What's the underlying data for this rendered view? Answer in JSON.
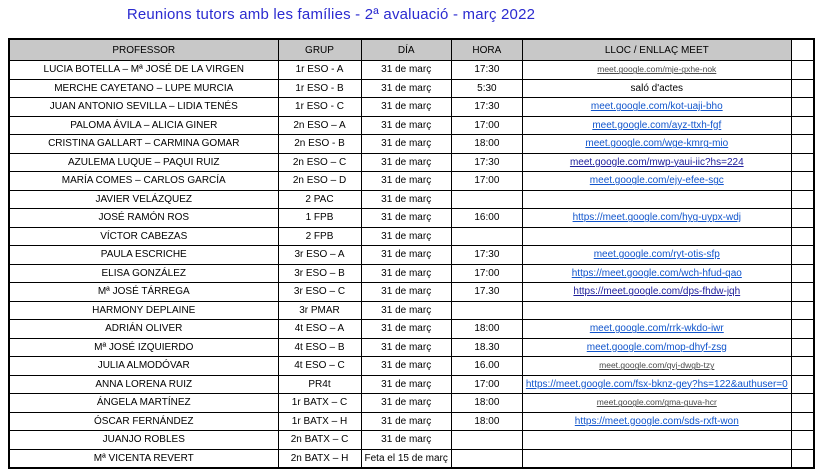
{
  "title": "Reunions tutors amb les famílies - 2ª avaluació - març 2022",
  "table": {
    "columns": [
      "PROFESSOR",
      "GRUP",
      "DÍA",
      "HORA",
      "LLOC / ENLLAÇ MEET",
      ""
    ],
    "rows": [
      {
        "professor": "LUCIA BOTELLA – Mª JOSÉ DE LA VIRGEN",
        "grup": "1r ESO - A",
        "dia": "31 de març",
        "hora": "17:30",
        "lloc": "meet.google.com/mje-gxhe-nok",
        "lloc_style": "small-link"
      },
      {
        "professor": "MERCHE CAYETANO – LUPE MURCIA",
        "grup": "1r ESO - B",
        "dia": "31 de març",
        "hora": "5:30",
        "lloc": "saló d'actes",
        "lloc_style": "text"
      },
      {
        "professor": "JUAN ANTONIO SEVILLA – LIDIA TENÉS",
        "grup": "1r ESO - C",
        "dia": "31 de març",
        "hora": "17:30",
        "lloc": "meet.google.com/kot-uaji-bho",
        "lloc_style": "link"
      },
      {
        "professor": "PALOMA ÁVILA – ALICIA GINER",
        "grup": "2n ESO – A",
        "dia": "31 de març",
        "hora": "17:00",
        "lloc": "meet.google.com/ayz-ttxh-fgf",
        "lloc_style": "link"
      },
      {
        "professor": "CRISTINA GALLART – CARMINA GOMAR",
        "grup": "2n ESO - B",
        "dia": "31 de març",
        "hora": "18:00",
        "lloc": "meet.google.com/wge-kmrg-mio",
        "lloc_style": "link"
      },
      {
        "professor": "AZULEMA LUQUE – PAQUI RUIZ",
        "grup": "2n ESO – C",
        "dia": "31 de març",
        "hora": "17:30",
        "lloc": "meet.google.com/mwp-yaui-iic?hs=224",
        "lloc_style": "navy-link"
      },
      {
        "professor": "MARÍA COMES – CARLOS GARCÍA",
        "grup": "2n ESO – D",
        "dia": "31 de març",
        "hora": "17:00",
        "lloc": "meet.google.com/ejy-efee-sgc",
        "lloc_style": "link"
      },
      {
        "professor": "JAVIER VELÁZQUEZ",
        "grup": "2 PAC",
        "dia": "31 de març",
        "hora": "",
        "lloc": "",
        "lloc_style": "empty"
      },
      {
        "professor": "JOSÉ RAMÓN ROS",
        "grup": "1 FPB",
        "dia": "31 de març",
        "hora": "16:00",
        "lloc": "https://meet.google.com/hyg-uypx-wdj",
        "lloc_style": "link"
      },
      {
        "professor": "VÍCTOR CABEZAS",
        "grup": "2 FPB",
        "dia": "31 de març",
        "hora": "",
        "lloc": "",
        "lloc_style": "empty"
      },
      {
        "professor": "PAULA ESCRICHE",
        "grup": "3r ESO – A",
        "dia": "31 de març",
        "hora": "17:30",
        "lloc": "meet.google.com/ryt-otis-sfp",
        "lloc_style": "link"
      },
      {
        "professor": "ELISA GONZÁLEZ",
        "grup": "3r ESO – B",
        "dia": "31 de març",
        "hora": "17:00",
        "lloc": "https://meet.google.com/wch-hfud-qao",
        "lloc_style": "link"
      },
      {
        "professor": "Mª JOSÉ TÁRREGA",
        "grup": "3r ESO – C",
        "dia": "31 de març",
        "hora": "17.30",
        "lloc": "https://meet.google.com/dps-fhdw-jqh",
        "lloc_style": "navy-link"
      },
      {
        "professor": "HARMONY DEPLAINE",
        "grup": "3r PMAR",
        "dia": "31 de març",
        "hora": "",
        "lloc": "",
        "lloc_style": "empty"
      },
      {
        "professor": "ADRIÁN OLIVER",
        "grup": "4t ESO – A",
        "dia": "31 de març",
        "hora": "18:00",
        "lloc": "meet.google.com/rrk-wkdo-iwr",
        "lloc_style": "link"
      },
      {
        "professor": "Mª JOSÉ IZQUIERDO",
        "grup": "4t ESO – B",
        "dia": "31 de març",
        "hora": "18.30",
        "lloc": "meet.google.com/mop-dhyf-zsg",
        "lloc_style": "link"
      },
      {
        "professor": "JULIA ALMODÓVAR",
        "grup": "4t ESO – C",
        "dia": "31 de març",
        "hora": "16.00",
        "lloc": "meet.google.com/qvj-dwgb-tzy",
        "lloc_style": "small-link"
      },
      {
        "professor": "ANNA LORENA RUIZ",
        "grup": "PR4t",
        "dia": "31 de març",
        "hora": "17:00",
        "lloc": "https://meet.google.com/fsx-bknz-gey?hs=122&authuser=0",
        "lloc_style": "link"
      },
      {
        "professor": "ÁNGELA MARTÍNEZ",
        "grup": "1r BATX – C",
        "dia": "31 de març",
        "hora": "18:00",
        "lloc": "meet.google.com/gma-guva-hcr",
        "lloc_style": "small-link"
      },
      {
        "professor": "ÓSCAR FERNÁNDEZ",
        "grup": "1r BATX – H",
        "dia": "31 de març",
        "hora": "18:00",
        "lloc": "https://meet.google.com/sds-rxft-won",
        "lloc_style": "link"
      },
      {
        "professor": "JUANJO ROBLES",
        "grup": "2n BATX – C",
        "dia": "31 de març",
        "hora": "",
        "lloc": "",
        "lloc_style": "empty"
      },
      {
        "professor": "Mª VICENTA REVERT",
        "grup": "2n BATX – H",
        "dia": "Feta el 15 de març",
        "hora": "",
        "lloc": "",
        "lloc_style": "empty"
      }
    ]
  },
  "colors": {
    "title": "#2b2bd0",
    "header_bg": "#c8c8c8",
    "link_blue": "#1155cc",
    "link_navy": "#20209c",
    "link_small_gray": "#4a4a4a",
    "border": "#000000"
  }
}
